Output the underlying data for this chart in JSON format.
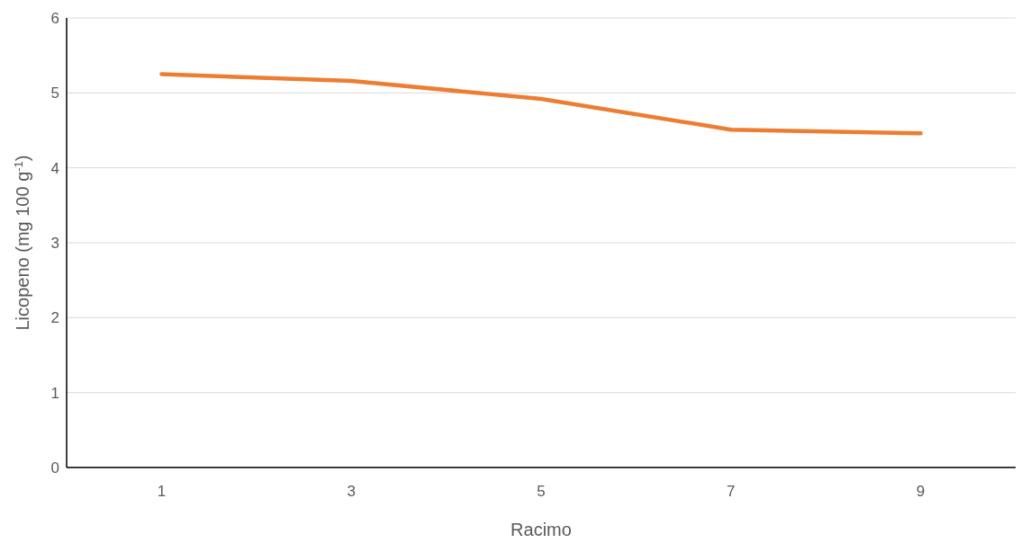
{
  "chart_data": {
    "type": "line",
    "xlabel": "Racimo",
    "ylabel": "Licopeno (mg 100 g$^{-1}$)",
    "categories": [
      "1",
      "3",
      "5",
      "7",
      "9"
    ],
    "series": [
      {
        "color": "#ed7d31",
        "values": [
          5.25,
          5.16,
          4.92,
          4.51,
          4.46
        ]
      }
    ],
    "ylim": [
      0,
      6
    ],
    "yticks": [
      0,
      1,
      2,
      3,
      4,
      5,
      6
    ],
    "grid": "y",
    "marker": "none",
    "line_style": "solid"
  }
}
